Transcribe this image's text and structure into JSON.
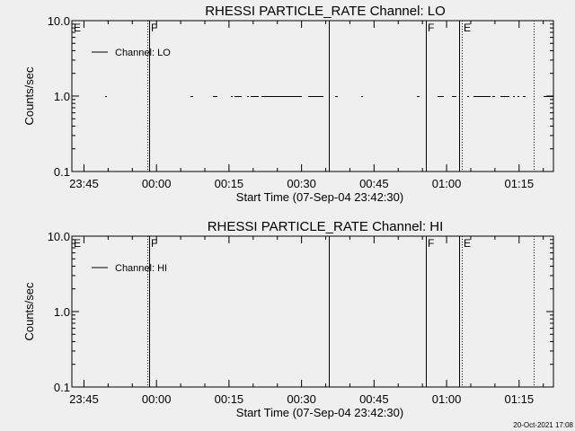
{
  "footer_timestamp": "20-Oct-2021 17:08",
  "chart_data": [
    {
      "type": "line",
      "title": "RHESSI PARTICLE_RATE Channel: LO",
      "xlabel": "Start Time (07-Sep-04 23:42:30)",
      "ylabel": "Counts/sec",
      "xlim": [
        "23:42:30",
        "01:22:06"
      ],
      "ylim": [
        0.1,
        10.0
      ],
      "yscale": "log",
      "xtick_labels": [
        "23:45",
        "00:00",
        "00:15",
        "00:30",
        "00:45",
        "01:00",
        "01:15"
      ],
      "ytick_labels": [
        "0.1",
        "1.0",
        "10.0"
      ],
      "legend": {
        "entries": [
          "Channel: LO"
        ],
        "placement": "top-left"
      },
      "series": [
        {
          "name": "Channel: LO",
          "value": 1.0,
          "segments": [
            [
              "23:49:23",
              "23:49:45"
            ],
            [
              "00:07:02",
              "00:07:35"
            ],
            [
              "00:11:41",
              "00:12:36"
            ],
            [
              "00:15:24",
              "00:15:46"
            ],
            [
              "00:16:08",
              "00:17:37"
            ],
            [
              "00:18:44",
              "00:19:07"
            ],
            [
              "00:19:29",
              "00:21:09"
            ],
            [
              "00:21:43",
              "00:30:04"
            ],
            [
              "00:31:22",
              "00:34:32"
            ],
            [
              "00:36:57",
              "00:37:30"
            ],
            [
              "00:42:20",
              "00:42:43"
            ],
            [
              "00:53:52",
              "00:54:25"
            ],
            [
              "00:58:08",
              "00:59:26"
            ],
            [
              "01:01:06",
              "01:02:02"
            ],
            [
              "01:04:16",
              "01:04:38"
            ],
            [
              "01:05:34",
              "01:09:06"
            ],
            [
              "01:09:28",
              "01:10:02"
            ],
            [
              "01:11:09",
              "01:13:00"
            ],
            [
              "01:13:45",
              "01:14:07"
            ],
            [
              "01:14:40",
              "01:15:03"
            ],
            [
              "01:15:47",
              "01:16:21"
            ],
            [
              "01:20:04",
              "01:22:06"
            ]
          ]
        }
      ],
      "vlines": [
        {
          "time": "23:58:07",
          "style": "dotted"
        },
        {
          "time": "23:58:29",
          "style": "solid"
        },
        {
          "time": "00:35:39",
          "style": "solid"
        },
        {
          "time": "00:55:43",
          "style": "solid"
        },
        {
          "time": "01:02:36",
          "style": "solid"
        },
        {
          "time": "01:03:09",
          "style": "dotted"
        },
        {
          "time": "01:18:01",
          "style": "dotted"
        }
      ],
      "annotations": [
        {
          "text": "E",
          "time": "23:42:30"
        },
        {
          "text": "F",
          "time": "23:58:29"
        },
        {
          "text": "F",
          "time": "00:55:43"
        },
        {
          "text": "E",
          "time": "01:03:09"
        }
      ]
    },
    {
      "type": "line",
      "title": "RHESSI PARTICLE_RATE Channel: HI",
      "xlabel": "Start Time (07-Sep-04 23:42:30)",
      "ylabel": "Counts/sec",
      "xlim": [
        "23:42:30",
        "01:22:06"
      ],
      "ylim": [
        0.1,
        10.0
      ],
      "yscale": "log",
      "xtick_labels": [
        "23:45",
        "00:00",
        "00:15",
        "00:30",
        "00:45",
        "01:00",
        "01:15"
      ],
      "ytick_labels": [
        "0.1",
        "1.0",
        "10.0"
      ],
      "legend": {
        "entries": [
          "Channel: HI"
        ],
        "placement": "top-left"
      },
      "series": [
        {
          "name": "Channel: HI",
          "value": 1.0,
          "segments": []
        }
      ],
      "vlines": [
        {
          "time": "23:58:07",
          "style": "dotted"
        },
        {
          "time": "23:58:29",
          "style": "solid"
        },
        {
          "time": "00:35:39",
          "style": "solid"
        },
        {
          "time": "00:55:43",
          "style": "solid"
        },
        {
          "time": "01:02:36",
          "style": "solid"
        },
        {
          "time": "01:03:09",
          "style": "dotted"
        },
        {
          "time": "01:18:01",
          "style": "dotted"
        }
      ],
      "annotations": [
        {
          "text": "E",
          "time": "23:42:30"
        },
        {
          "text": "F",
          "time": "23:58:29"
        },
        {
          "text": "F",
          "time": "00:55:43"
        },
        {
          "text": "E",
          "time": "01:03:09"
        }
      ]
    }
  ]
}
